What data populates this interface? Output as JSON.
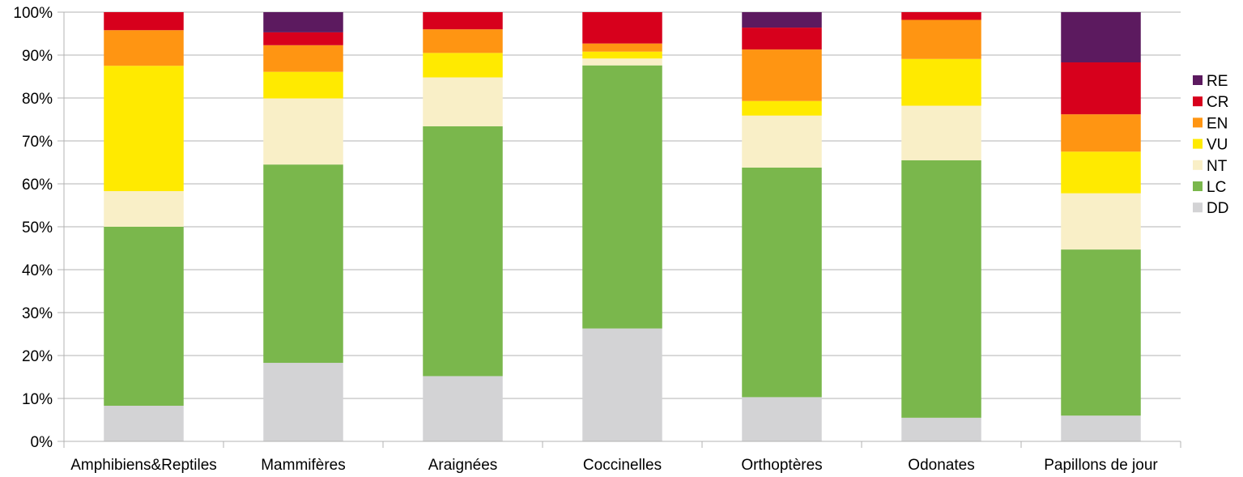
{
  "chart_data": {
    "type": "bar",
    "stacked": true,
    "percent": true,
    "title": "",
    "xlabel": "",
    "ylabel": "",
    "ylim": [
      0,
      100
    ],
    "yticks": [
      "0%",
      "10%",
      "20%",
      "30%",
      "40%",
      "50%",
      "60%",
      "70%",
      "80%",
      "90%",
      "100%"
    ],
    "grid": true,
    "legend_position": "right",
    "categories": [
      "Amphibiens&Reptiles",
      "Mammifères",
      "Araignées",
      "Coccinelles",
      "Orthoptères",
      "Odonates",
      "Papillons de jour"
    ],
    "series": [
      {
        "name": "DD",
        "color": "#d3d3d5",
        "values": [
          8.3,
          18.3,
          15.2,
          26.3,
          10.3,
          5.5,
          6.0
        ]
      },
      {
        "name": "LC",
        "color": "#7ab74c",
        "values": [
          41.7,
          46.2,
          58.2,
          61.3,
          53.5,
          60.0,
          38.7
        ]
      },
      {
        "name": "NT",
        "color": "#f9efc7",
        "values": [
          8.3,
          15.4,
          11.4,
          1.6,
          12.1,
          12.7,
          13.1
        ]
      },
      {
        "name": "VU",
        "color": "#ffea00",
        "values": [
          29.2,
          6.2,
          5.7,
          1.6,
          3.4,
          10.9,
          9.7
        ]
      },
      {
        "name": "EN",
        "color": "#ff9512",
        "values": [
          8.3,
          6.2,
          5.5,
          1.9,
          12.0,
          9.1,
          8.7
        ]
      },
      {
        "name": "CR",
        "color": "#d7001c",
        "values": [
          4.2,
          3.0,
          4.0,
          7.3,
          5.1,
          1.8,
          12.1
        ]
      },
      {
        "name": "RE",
        "color": "#5c1a5f",
        "values": [
          0,
          4.7,
          0,
          0,
          3.6,
          0,
          11.7
        ]
      }
    ],
    "legend_order": [
      "RE",
      "CR",
      "EN",
      "VU",
      "NT",
      "LC",
      "DD"
    ]
  }
}
